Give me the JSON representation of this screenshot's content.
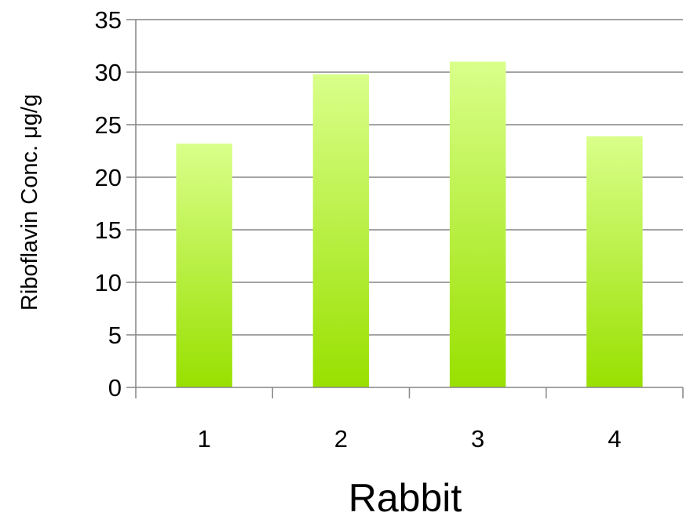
{
  "chart_data": {
    "type": "bar",
    "title": "",
    "xlabel": "Rabbit",
    "ylabel": "Riboflavin Conc. μg/g",
    "categories": [
      "1",
      "2",
      "3",
      "4"
    ],
    "values": [
      23.2,
      29.8,
      31.0,
      23.9
    ],
    "ylim": [
      0,
      35
    ],
    "yticks": [
      0,
      5,
      10,
      15,
      20,
      25,
      30,
      35
    ],
    "grid": true,
    "legend": "none",
    "colors": {
      "bar_top": "#D9FF8A",
      "bar_bottom": "#99E000",
      "grid": "#868686",
      "axis": "#868686"
    }
  }
}
